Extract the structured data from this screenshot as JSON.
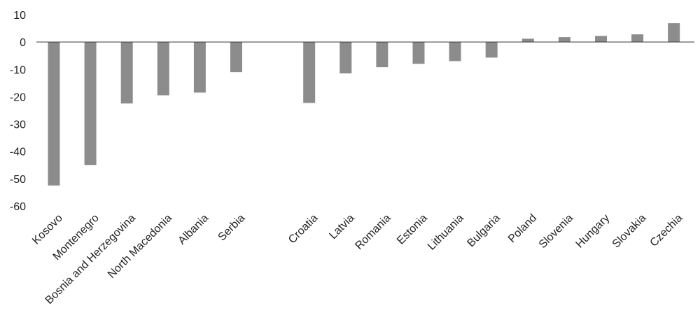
{
  "chart_data": {
    "type": "bar",
    "categories": [
      "Kosovo",
      "Montenegro",
      "Bosnia and Herzegovina",
      "North Macedonia",
      "Albania",
      "Serbia",
      "",
      "Croatia",
      "Latvia",
      "Romania",
      "Estonia",
      "Lithuania",
      "Bulgaria",
      "Poland",
      "Slovenia",
      "Hungary",
      "Slovakia",
      "Czechia"
    ],
    "values": [
      -52.5,
      -45,
      -22.5,
      -19.5,
      -18.5,
      -11,
      null,
      -22.3,
      -11.5,
      -9.2,
      -8,
      -7,
      -5.7,
      1.2,
      1.8,
      2.2,
      2.8,
      6.9
    ],
    "title": "",
    "xlabel": "",
    "ylabel": "",
    "ylim": [
      -60,
      10
    ],
    "yticks": [
      "10",
      "0",
      "-10",
      "-20",
      "-30",
      "-40",
      "-50",
      "-60"
    ],
    "grid": false,
    "legend": "none",
    "bar_color": "#8c8c8c",
    "axis_color": "#333333"
  }
}
